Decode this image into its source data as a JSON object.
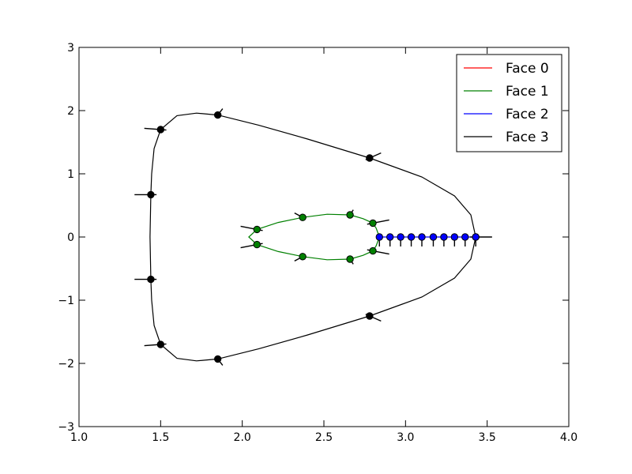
{
  "chart_data": {
    "type": "line",
    "title": "",
    "xlabel": "",
    "ylabel": "",
    "xlim": [
      1.0,
      4.0
    ],
    "ylim": [
      -3,
      3
    ],
    "xticks": [
      1.0,
      1.5,
      2.0,
      2.5,
      3.0,
      3.5,
      4.0
    ],
    "xtick_labels": [
      "1.0",
      "1.5",
      "2.0",
      "2.5",
      "3.0",
      "3.5",
      "4.0"
    ],
    "yticks": [
      -3,
      -2,
      -1,
      0,
      1,
      2,
      3
    ],
    "ytick_labels": [
      "−3",
      "−2",
      "−1",
      "0",
      "1",
      "2",
      "3"
    ],
    "grid": false,
    "legend_position": "top-right",
    "series": [
      {
        "name": "Face 0",
        "color": "#ff0000",
        "curve": [],
        "points": []
      },
      {
        "name": "Face 1",
        "color": "#008000",
        "curve": [
          [
            2.84,
            0.0
          ],
          [
            2.82,
            0.14
          ],
          [
            2.8,
            0.22
          ],
          [
            2.74,
            0.29
          ],
          [
            2.66,
            0.35
          ],
          [
            2.52,
            0.36
          ],
          [
            2.37,
            0.31
          ],
          [
            2.22,
            0.23
          ],
          [
            2.09,
            0.12
          ],
          [
            2.04,
            0.0
          ],
          [
            2.09,
            -0.12
          ],
          [
            2.22,
            -0.23
          ],
          [
            2.37,
            -0.31
          ],
          [
            2.52,
            -0.36
          ],
          [
            2.66,
            -0.35
          ],
          [
            2.74,
            -0.29
          ],
          [
            2.8,
            -0.22
          ],
          [
            2.82,
            -0.14
          ],
          [
            2.84,
            0.0
          ]
        ],
        "points": [
          [
            2.09,
            0.12
          ],
          [
            2.37,
            0.31
          ],
          [
            2.66,
            0.35
          ],
          [
            2.8,
            0.22
          ],
          [
            2.09,
            -0.12
          ],
          [
            2.37,
            -0.31
          ],
          [
            2.66,
            -0.35
          ],
          [
            2.8,
            -0.22
          ]
        ],
        "normals": [
          [
            -0.1,
            0.05
          ],
          [
            -0.05,
            0.07
          ],
          [
            0.02,
            0.08
          ],
          [
            0.1,
            0.05
          ],
          [
            -0.1,
            -0.05
          ],
          [
            -0.05,
            -0.07
          ],
          [
            0.02,
            -0.08
          ],
          [
            0.1,
            -0.05
          ]
        ]
      },
      {
        "name": "Face 2",
        "color": "#0000ff",
        "curve": [
          [
            2.84,
            0.0
          ],
          [
            3.43,
            0.0
          ]
        ],
        "points": [
          [
            2.84,
            0.0
          ],
          [
            2.905,
            0.0
          ],
          [
            2.97,
            0.0
          ],
          [
            3.035,
            0.0
          ],
          [
            3.1,
            0.0
          ],
          [
            3.17,
            0.0
          ],
          [
            3.235,
            0.0
          ],
          [
            3.3,
            0.0
          ],
          [
            3.365,
            0.0
          ],
          [
            3.43,
            0.0
          ]
        ],
        "normals": [
          [
            0.0,
            -0.15
          ],
          [
            0.0,
            -0.15
          ],
          [
            0.0,
            -0.15
          ],
          [
            0.0,
            -0.15
          ],
          [
            0.0,
            -0.15
          ],
          [
            0.0,
            -0.15
          ],
          [
            0.0,
            -0.15
          ],
          [
            0.0,
            -0.15
          ],
          [
            0.0,
            -0.15
          ],
          [
            0.0,
            -0.15
          ]
        ]
      },
      {
        "name": "Face 3",
        "color": "#000000",
        "curve": [
          [
            3.43,
            0.0
          ],
          [
            3.4,
            0.35
          ],
          [
            3.3,
            0.65
          ],
          [
            3.1,
            0.95
          ],
          [
            2.78,
            1.25
          ],
          [
            2.4,
            1.55
          ],
          [
            2.1,
            1.77
          ],
          [
            1.85,
            1.93
          ],
          [
            1.72,
            1.96
          ],
          [
            1.6,
            1.92
          ],
          [
            1.5,
            1.7
          ],
          [
            1.46,
            1.4
          ],
          [
            1.445,
            1.0
          ],
          [
            1.44,
            0.67
          ],
          [
            1.435,
            0.0
          ],
          [
            1.44,
            -0.67
          ],
          [
            1.445,
            -1.0
          ],
          [
            1.46,
            -1.4
          ],
          [
            1.5,
            -1.7
          ],
          [
            1.6,
            -1.92
          ],
          [
            1.72,
            -1.96
          ],
          [
            1.85,
            -1.93
          ],
          [
            2.1,
            -1.77
          ],
          [
            2.4,
            -1.55
          ],
          [
            2.78,
            -1.25
          ],
          [
            3.1,
            -0.95
          ],
          [
            3.3,
            -0.65
          ],
          [
            3.4,
            -0.35
          ],
          [
            3.43,
            0.0
          ]
        ],
        "points": [
          [
            3.43,
            0.0
          ],
          [
            2.78,
            1.25
          ],
          [
            1.85,
            1.93
          ],
          [
            1.5,
            1.7
          ],
          [
            1.44,
            0.67
          ],
          [
            1.44,
            -0.67
          ],
          [
            1.5,
            -1.7
          ],
          [
            1.85,
            -1.93
          ],
          [
            2.78,
            -1.25
          ]
        ],
        "normals": [
          [
            0.1,
            0.0
          ],
          [
            0.07,
            0.08
          ],
          [
            0.03,
            0.1
          ],
          [
            -0.1,
            0.02
          ],
          [
            -0.1,
            0.0
          ],
          [
            -0.1,
            0.0
          ],
          [
            -0.1,
            -0.02
          ],
          [
            0.03,
            -0.1
          ],
          [
            0.07,
            -0.08
          ]
        ]
      }
    ]
  }
}
